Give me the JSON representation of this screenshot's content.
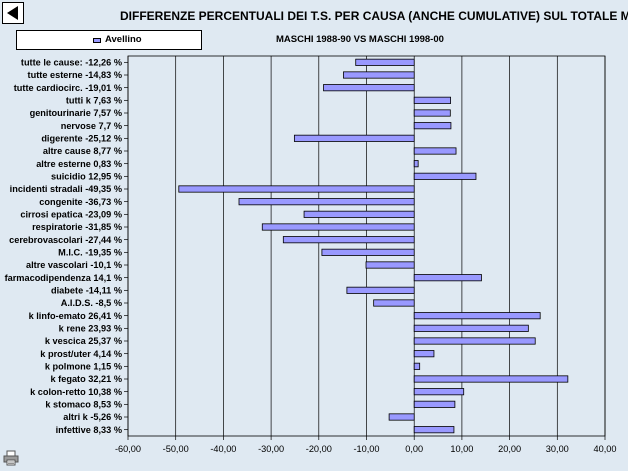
{
  "chart_data": {
    "type": "bar",
    "orientation": "horizontal",
    "title": "DIFFERENZE PERCENTUALI DEI T.S. PER CAUSA (ANCHE CUMULATIVE) SUL TOTALE MORTI",
    "subtitle": "MASCHI 1988-90 VS MASCHI 1998-00",
    "legend_position": "top-left",
    "grid": true,
    "xlim": [
      -60,
      40
    ],
    "x_ticks": [
      "-60,00",
      "-50,00",
      "-40,00",
      "-30,00",
      "-20,00",
      "-10,00",
      "0,00",
      "10,00",
      "20,00",
      "30,00",
      "40,00"
    ],
    "bar_color": "#9999ff",
    "plot_background": "#dfe9f2",
    "categories": [
      "tutte le cause: -12,26 %",
      "tutte esterne -14,83 %",
      "tutte cardiocirc. -19,01 %",
      "tutti k 7,63 %",
      "genitourinarie 7,57 %",
      "nervose 7,7 %",
      "digerente -25,12 %",
      "altre cause 8,77 %",
      "altre esterne 0,83 %",
      "suicidio 12,95 %",
      "incidenti stradali -49,35 %",
      "congenite -36,73 %",
      "cirrosi epatica -23,09 %",
      "respiratorie -31,85 %",
      "cerebrovascolari -27,44 %",
      "M.I.C. -19,35 %",
      "altre vascolari -10,1 %",
      "farmacodipendenza 14,1 %",
      "diabete -14,11 %",
      "A.I.D.S. -8,5 %",
      "k linfo-emato 26,41 %",
      "k rene 23,93 %",
      "k vescica 25,37 %",
      "k prost/uter 4,14 %",
      "k polmone 1,15 %",
      "k fegato 32,21 %",
      "k colon-retto 10,38 %",
      "k stomaco 8,53 %",
      "altri k -5,26 %",
      "infettive 8,33 %"
    ],
    "series": [
      {
        "name": "Avellino",
        "values": [
          -12.26,
          -14.83,
          -19.01,
          7.63,
          7.57,
          7.7,
          -25.12,
          8.77,
          0.83,
          12.95,
          -49.35,
          -36.73,
          -23.09,
          -31.85,
          -27.44,
          -19.35,
          -10.1,
          14.1,
          -14.11,
          -8.5,
          26.41,
          23.93,
          25.37,
          4.14,
          1.15,
          32.21,
          10.38,
          8.53,
          -5.26,
          8.33
        ]
      }
    ]
  },
  "icons": {
    "back": "back-arrow-icon",
    "print": "printer-icon"
  }
}
